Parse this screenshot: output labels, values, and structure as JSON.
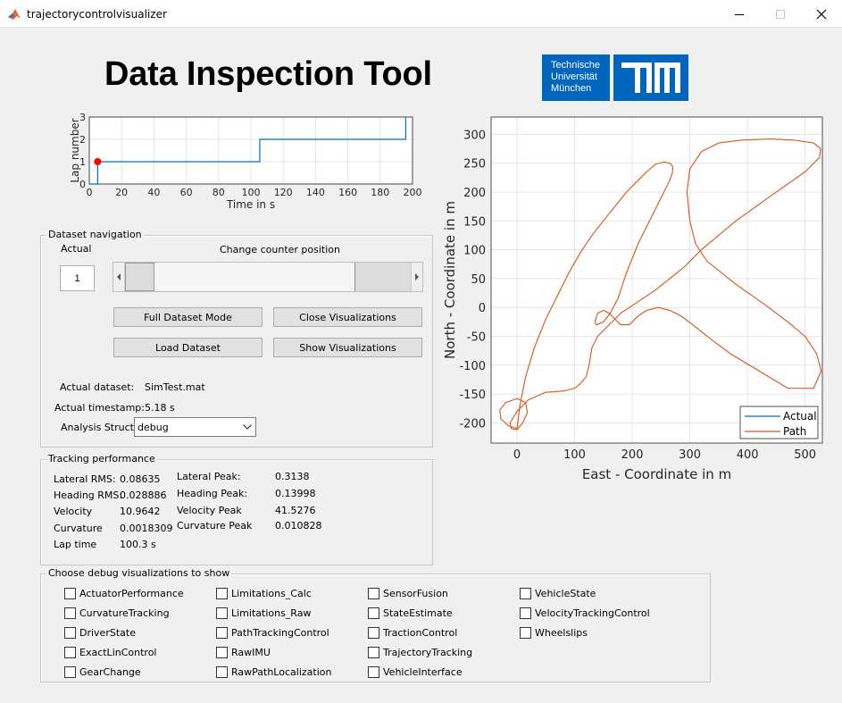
{
  "window": {
    "title": "trajectorycontrolvisualizer",
    "icons": [
      "matlab-icon",
      "minimize-icon",
      "maximize-icon",
      "close-icon"
    ]
  },
  "header": {
    "title": "Data Inspection Tool",
    "logo_text": [
      "Technische",
      "Universität",
      "München"
    ]
  },
  "lap_chart": {
    "chart_data": {
      "type": "line",
      "xlabel": "Time in s",
      "ylabel": "Lap number",
      "xlim": [
        0,
        200
      ],
      "ylim": [
        0,
        3
      ],
      "xticks": [
        "0",
        "20",
        "40",
        "60",
        "80",
        "100",
        "120",
        "140",
        "160",
        "180",
        "200"
      ],
      "yticks": [
        "0",
        "1",
        "2",
        "3"
      ],
      "grid": true,
      "series": [
        {
          "x": [
            0,
            5.18,
            5.18,
            105.5,
            105.5,
            195.8,
            195.8
          ],
          "y": [
            0,
            0,
            1,
            1,
            2,
            2,
            3
          ]
        }
      ],
      "marker": {
        "x": 5.18,
        "y": 1,
        "color": "#ff0000"
      },
      "line_color": "#0072bd"
    }
  },
  "map_chart": {
    "chart_data": {
      "type": "line",
      "xlabel": "East - Coordinate in m",
      "ylabel": "North - Coordinate in m",
      "xlim": [
        -45,
        530
      ],
      "ylim": [
        -235,
        330
      ],
      "xticks": [
        "0",
        "100",
        "200",
        "300",
        "400",
        "500"
      ],
      "yticks": [
        "-200",
        "-150",
        "-100",
        "-50",
        "0",
        "50",
        "100",
        "150",
        "200",
        "250",
        "300"
      ],
      "grid": true,
      "legend_position": "bottom-right",
      "series": [
        {
          "name": "Actual",
          "color": "#0072bd",
          "x": [],
          "y": []
        },
        {
          "name": "Path",
          "color": "#d95319",
          "x": [
            0,
            -15,
            -28,
            -30,
            -20,
            0,
            15,
            18,
            10,
            0,
            -10,
            -12,
            0,
            20,
            50,
            80,
            100,
            110,
            120,
            125,
            130,
            140,
            180,
            240,
            290,
            320,
            380,
            450,
            500,
            525,
            527,
            515,
            480,
            440,
            390,
            350,
            320,
            300,
            295,
            300,
            310,
            330,
            380,
            430,
            470,
            500,
            520,
            528,
            515,
            470,
            420,
            370,
            330,
            305,
            285,
            265,
            245,
            225,
            210,
            195,
            180,
            170,
            160,
            150,
            140,
            135,
            138,
            150,
            162,
            175,
            190,
            210,
            230,
            250,
            265,
            270,
            270,
            265,
            255,
            240,
            225,
            210,
            190,
            170,
            150,
            130,
            110,
            90,
            70,
            50,
            30,
            15,
            5,
            0
          ],
          "y": [
            -210,
            -205,
            -193,
            -178,
            -165,
            -158,
            -165,
            -182,
            -200,
            -212,
            -210,
            -200,
            -180,
            -160,
            -147,
            -145,
            -140,
            -132,
            -120,
            -100,
            -70,
            -50,
            -10,
            30,
            70,
            100,
            150,
            200,
            235,
            260,
            275,
            285,
            290,
            292,
            290,
            285,
            270,
            240,
            200,
            150,
            110,
            80,
            40,
            5,
            -25,
            -50,
            -80,
            -110,
            -140,
            -140,
            -110,
            -80,
            -50,
            -30,
            -15,
            -5,
            0,
            -5,
            -15,
            -30,
            -30,
            -20,
            -10,
            -5,
            -10,
            -25,
            -30,
            -25,
            -10,
            15,
            60,
            110,
            150,
            190,
            220,
            235,
            245,
            250,
            252,
            248,
            235,
            220,
            200,
            175,
            150,
            125,
            95,
            60,
            20,
            -20,
            -70,
            -120,
            -170,
            -210
          ]
        }
      ]
    }
  },
  "dataset_navigation": {
    "title": "Dataset navigation",
    "actual_label": "Actual",
    "actual_value": "1",
    "slider_label": "Change counter position",
    "slider_position": 0.05,
    "buttons": {
      "full_dataset_mode": "Full Dataset Mode",
      "close_visualizations": "Close Visualizations",
      "load_dataset": "Load Dataset",
      "show_visualizations": "Show Visualizations"
    },
    "actual_dataset_label": "Actual dataset:",
    "actual_dataset_value": "SimTest.mat",
    "actual_timestamp_label": "Actual timestamp:",
    "actual_timestamp_value": "5.18 s",
    "analysis_struct_label": "Analysis Struct",
    "analysis_struct_value": "debug"
  },
  "tracking_performance": {
    "title": "Tracking performance",
    "left": [
      {
        "label": "Lateral RMS:",
        "value": "0.08635"
      },
      {
        "label": "Heading RMS:",
        "value": "0.028886"
      },
      {
        "label": "Velocity",
        "value": "10.9642"
      },
      {
        "label": "Curvature",
        "value": "0.0018309"
      },
      {
        "label": "Lap time",
        "value": "100.3 s"
      }
    ],
    "right": [
      {
        "label": "Lateral Peak:",
        "value": "0.3138"
      },
      {
        "label": "Heading Peak:",
        "value": "0.13998"
      },
      {
        "label": "Velocity Peak",
        "value": "41.5276"
      },
      {
        "label": "Curvature Peak",
        "value": "0.010828"
      }
    ]
  },
  "debug_visualizations": {
    "title": "Choose debug visualizations to show",
    "columns": [
      [
        "ActuatorPerformance",
        "CurvatureTracking",
        "DriverState",
        "ExactLinControl",
        "GearChange"
      ],
      [
        "Limitations_Calc",
        "Limitations_Raw",
        "PathTrackingControl",
        "RawIMU",
        "RawPathLocalization"
      ],
      [
        "SensorFusion",
        "StateEstimate",
        "TractionControl",
        "TrajectoryTracking",
        "VehicleInterface"
      ],
      [
        "VehicleState",
        "VelocityTrackingControl",
        "Wheelslips"
      ]
    ]
  },
  "colors": {
    "accent_tum": "#0065bd",
    "background": "#f0f0f0"
  }
}
